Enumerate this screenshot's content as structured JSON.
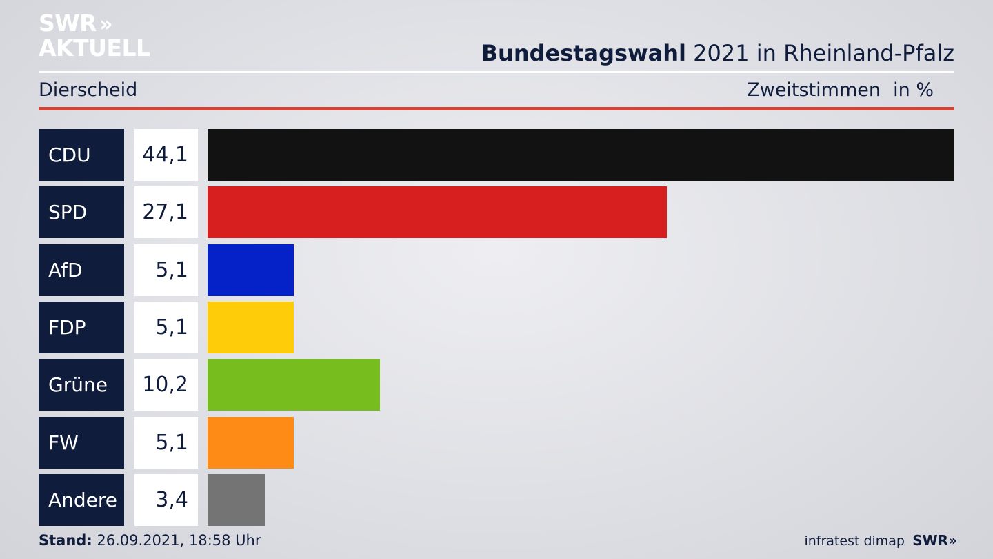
{
  "header": {
    "logo_line1": "SWR",
    "logo_arrows": "»",
    "logo_line2": "AKTUELL",
    "title_bold": "Bundestagswahl",
    "title_rest": " 2021 in Rheinland-Pfalz",
    "district": "Dierscheid",
    "votes_label": "Zweitstimmen",
    "unit_label": "in %"
  },
  "chart_data": {
    "type": "bar",
    "orientation": "horizontal",
    "title": "Bundestagswahl 2021 in Rheinland-Pfalz",
    "subtitle": "Dierscheid",
    "xlabel": "Zweitstimmen",
    "unit": "in %",
    "xlim": [
      0,
      44.1
    ],
    "grid": false,
    "categories": [
      "CDU",
      "SPD",
      "AfD",
      "FDP",
      "Grüne",
      "FW",
      "Andere"
    ],
    "values": [
      44.1,
      27.1,
      5.1,
      5.1,
      10.2,
      5.1,
      3.4
    ],
    "value_labels": [
      "44,1",
      "27,1",
      "5,1",
      "5,1",
      "10,2",
      "5,1",
      "3,4"
    ],
    "colors": [
      "#121212",
      "#d71f1f",
      "#0521c8",
      "#ffcc0a",
      "#78bd1e",
      "#ff8b17",
      "#747474"
    ]
  },
  "footer": {
    "stand_label": "Stand:",
    "stand_value": " 26.09.2021, 18:58 Uhr",
    "source": "infratest dimap",
    "logo_text": "SWR",
    "logo_arrows": "»"
  }
}
